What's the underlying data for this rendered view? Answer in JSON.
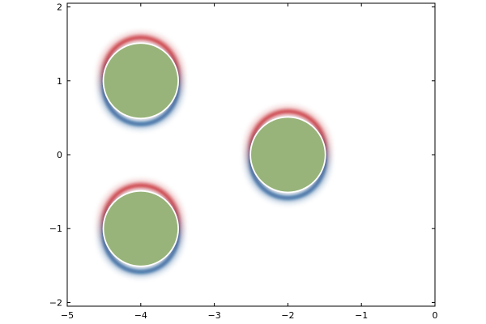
{
  "chart_data": {
    "type": "scatter",
    "title": "",
    "xlabel": "",
    "ylabel": "",
    "xlim": [
      -5,
      0
    ],
    "ylim": [
      -2.05,
      2.05
    ],
    "xticks": [
      -5,
      -4,
      -3,
      -2,
      -1,
      0
    ],
    "yticks": [
      -2,
      -1,
      0,
      1,
      2
    ],
    "xtick_labels": [
      "−5",
      "−4",
      "−3",
      "−2",
      "−1",
      "0"
    ],
    "ytick_labels": [
      "−2",
      "−1",
      "0",
      "1",
      "2"
    ],
    "grid": false,
    "legend": "none",
    "colors": {
      "body_fill": "#98b47a",
      "upper_halo": "#c0141e",
      "lower_halo": "#0a4a8c",
      "frame": "#000000",
      "background": "#ffffff"
    },
    "bodies": [
      {
        "x": -4.0,
        "y": 1.0,
        "radius": 0.5
      },
      {
        "x": -2.0,
        "y": 0.0,
        "radius": 0.5
      },
      {
        "x": -4.0,
        "y": -1.0,
        "radius": 0.5
      }
    ]
  }
}
